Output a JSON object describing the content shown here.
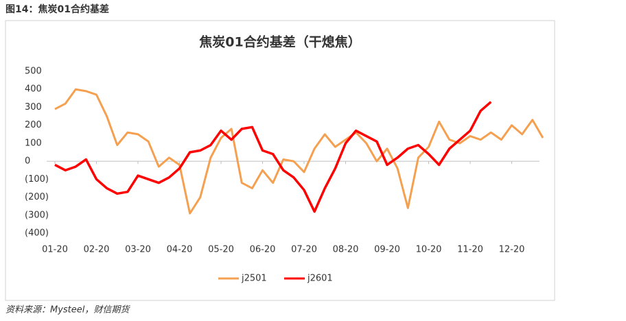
{
  "caption": "图14：焦炭01合约基差",
  "source": "资料来源：Mysteel，财信期货",
  "chart_data": {
    "type": "line",
    "title": "焦炭01合约基差（干熄焦）",
    "categories": [
      "01-20",
      null,
      null,
      null,
      "02-20",
      null,
      null,
      null,
      "03-20",
      null,
      null,
      null,
      "04-20",
      null,
      null,
      null,
      "05-20",
      null,
      null,
      null,
      "06-20",
      null,
      null,
      null,
      "07-20",
      null,
      null,
      null,
      "08-20",
      null,
      null,
      null,
      "09-20",
      null,
      null,
      null,
      "10-20",
      null,
      null,
      null,
      "11-20",
      null,
      null,
      null,
      "12-20",
      null,
      null,
      null
    ],
    "series": [
      {
        "name": "j2501",
        "color": "#f5a050",
        "values": [
          290,
          320,
          400,
          390,
          370,
          250,
          90,
          160,
          150,
          110,
          -30,
          20,
          -20,
          -290,
          -200,
          20,
          130,
          180,
          -120,
          -150,
          -50,
          -120,
          10,
          0,
          -60,
          70,
          150,
          80,
          120,
          160,
          100,
          0,
          70,
          -40,
          -260,
          20,
          80,
          220,
          120,
          100,
          140,
          120,
          160,
          120,
          200,
          150,
          230,
          130
        ]
      },
      {
        "name": "j2601",
        "color": "#ff0000",
        "values": [
          -20,
          -50,
          -30,
          10,
          -100,
          -150,
          -180,
          -170,
          -80,
          -100,
          -120,
          -90,
          -40,
          50,
          60,
          90,
          170,
          120,
          180,
          190,
          60,
          40,
          -50,
          -90,
          -160,
          -280,
          -150,
          -40,
          100,
          170,
          140,
          110,
          -20,
          20,
          70,
          90,
          40,
          -20,
          70,
          120,
          170,
          280,
          330,
          null,
          null,
          null,
          null,
          null
        ]
      }
    ],
    "ylim": [
      -400,
      500
    ],
    "yticks": [
      {
        "value": -400,
        "label": "(400)"
      },
      {
        "value": -300,
        "label": "(300)"
      },
      {
        "value": -200,
        "label": "(200)"
      },
      {
        "value": -100,
        "label": "(100)"
      },
      0,
      100,
      200,
      300,
      400,
      500
    ],
    "negative_tick_color": "#ff0000",
    "legend": "bottom"
  }
}
